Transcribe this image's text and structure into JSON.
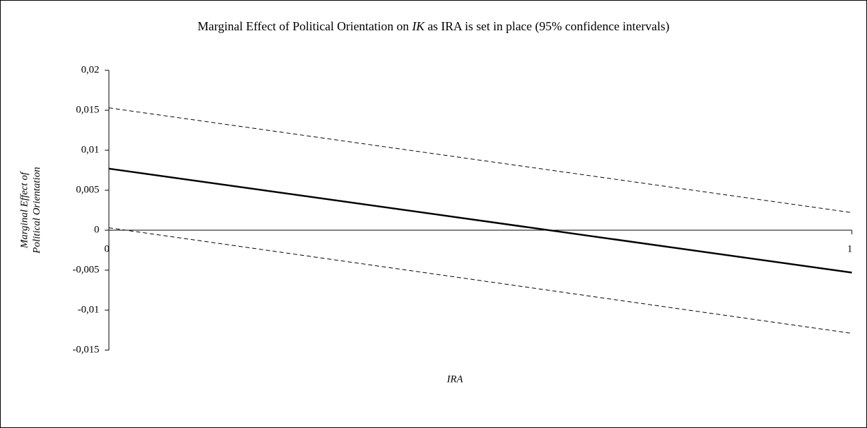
{
  "chart_data": {
    "type": "line",
    "title": [
      "Marginal Effect of Political Orientation on ",
      "IK",
      " as IRA is set in place  (95% confidence intervals)"
    ],
    "x_label": "IRA",
    "y_label": [
      "Marginal Effect of",
      "Political Orientation"
    ],
    "x": [
      0,
      1
    ],
    "xlim": [
      0,
      1
    ],
    "xticks": [
      0,
      1
    ],
    "ylim": [
      -0.015,
      0.02
    ],
    "yticks": [
      {
        "value": -0.015,
        "label": "-0,015"
      },
      {
        "value": -0.01,
        "label": "-0,01"
      },
      {
        "value": -0.005,
        "label": "-0,005"
      },
      0,
      {
        "value": 0.005,
        "label": "0,005"
      },
      {
        "value": 0.01,
        "label": "0,01"
      },
      {
        "value": 0.015,
        "label": "0,015"
      },
      {
        "value": 0.02,
        "label": "0,02"
      }
    ],
    "series": [
      {
        "color": "#000000",
        "style": "solid",
        "values": [
          0.0077,
          -0.0053
        ]
      },
      {
        "color": "#000000",
        "style": "dashed",
        "values": [
          0.0153,
          0.0022
        ]
      },
      {
        "color": "#000000",
        "style": "dashed",
        "values": [
          0.0003,
          -0.0129
        ]
      }
    ]
  }
}
